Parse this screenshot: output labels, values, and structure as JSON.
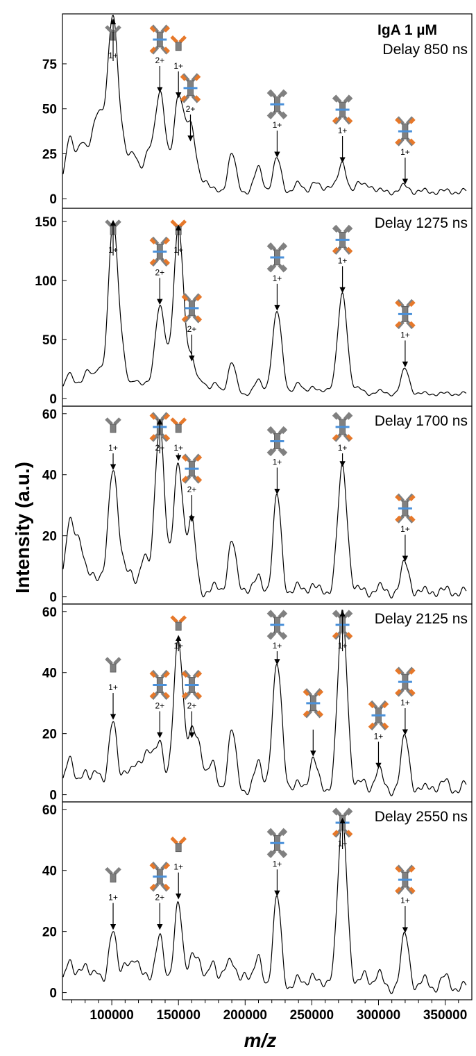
{
  "figure": {
    "sample_label": "IgA 1 µM",
    "ylabel": "Intensity (a.u.)",
    "xlabel": "m/z",
    "xlim": [
      63000,
      370000
    ],
    "xticks": [
      100000,
      150000,
      200000,
      250000,
      300000,
      350000
    ],
    "xtick_labels": [
      "100000",
      "150000",
      "200000",
      "250000",
      "300000",
      "350000"
    ],
    "colors": {
      "heavy_chain": "#808080",
      "light_chain": "#e6782a",
      "j_chain": "#4a90d9",
      "trace": "#000000"
    }
  },
  "chart_data": [
    {
      "type": "line",
      "title": "Delay 850 ns",
      "ylim": [
        -3,
        102
      ],
      "yticks": [
        0,
        25,
        50,
        75
      ],
      "peaks": [
        [
          68000,
          30
        ],
        [
          73000,
          15
        ],
        [
          78000,
          28
        ],
        [
          85000,
          25
        ],
        [
          90000,
          39
        ],
        [
          95000,
          24
        ],
        [
          101000,
          98
        ],
        [
          108000,
          25
        ],
        [
          114000,
          15
        ],
        [
          118000,
          18
        ],
        [
          124000,
          12
        ],
        [
          128000,
          20
        ],
        [
          136000,
          58
        ],
        [
          141000,
          12
        ],
        [
          150000,
          55
        ],
        [
          155000,
          15
        ],
        [
          159000,
          31
        ],
        [
          163000,
          14
        ],
        [
          170000,
          10
        ],
        [
          190000,
          25
        ],
        [
          210000,
          17
        ],
        [
          224000,
          22
        ],
        [
          240000,
          8
        ],
        [
          252000,
          9
        ],
        [
          264000,
          8
        ],
        [
          273000,
          19
        ],
        [
          285000,
          8
        ],
        [
          293000,
          8
        ],
        [
          320000,
          7
        ],
        [
          340000,
          4
        ]
      ],
      "baseline": 4,
      "annotations": [
        {
          "x": 101000,
          "icon": "fragment",
          "charge": "1+"
        },
        {
          "x": 136000,
          "icon": "half-j",
          "charge": "2+"
        },
        {
          "x": 150000,
          "icon": "fragment-orange",
          "charge": "1+"
        },
        {
          "x": 159000,
          "icon": "half-j",
          "charge": "2+"
        },
        {
          "x": 224000,
          "icon": "gray-j",
          "charge": "1+"
        },
        {
          "x": 273000,
          "icon": "mixed-j",
          "charge": "1+"
        },
        {
          "x": 320000,
          "icon": "orange-j",
          "charge": "1+"
        }
      ]
    },
    {
      "type": "line",
      "title": "Delay 1275 ns",
      "ylim": [
        -3,
        160
      ],
      "yticks": [
        0,
        50,
        100,
        150
      ],
      "peaks": [
        [
          68000,
          20
        ],
        [
          75000,
          12
        ],
        [
          82000,
          22
        ],
        [
          90000,
          25
        ],
        [
          101000,
          148
        ],
        [
          108000,
          30
        ],
        [
          118000,
          15
        ],
        [
          125000,
          12
        ],
        [
          136000,
          78
        ],
        [
          142000,
          15
        ],
        [
          150000,
          144
        ],
        [
          155000,
          12
        ],
        [
          160000,
          30
        ],
        [
          168000,
          15
        ],
        [
          178000,
          12
        ],
        [
          190000,
          30
        ],
        [
          210000,
          15
        ],
        [
          224000,
          73
        ],
        [
          240000,
          12
        ],
        [
          250000,
          10
        ],
        [
          262000,
          8
        ],
        [
          273000,
          88
        ],
        [
          285000,
          8
        ],
        [
          300000,
          6
        ],
        [
          320000,
          25
        ],
        [
          345000,
          4
        ]
      ],
      "baseline": 4,
      "annotations": [
        {
          "x": 101000,
          "icon": "fragment",
          "charge": "1+"
        },
        {
          "x": 136000,
          "icon": "half-j",
          "charge": "2+"
        },
        {
          "x": 150000,
          "icon": "fragment-orange",
          "charge": "1+"
        },
        {
          "x": 160000,
          "icon": "half-j",
          "charge": "2+"
        },
        {
          "x": 224000,
          "icon": "gray-j",
          "charge": "1+"
        },
        {
          "x": 273000,
          "icon": "mixed-j",
          "charge": "1+"
        },
        {
          "x": 320000,
          "icon": "orange-j",
          "charge": "1+"
        }
      ]
    },
    {
      "type": "line",
      "title": "Delay 1700 ns",
      "ylim": [
        -1,
        62
      ],
      "yticks": [
        0,
        20,
        40,
        60
      ],
      "peaks": [
        [
          68000,
          21
        ],
        [
          73000,
          12
        ],
        [
          77000,
          13
        ],
        [
          85000,
          6
        ],
        [
          91000,
          6
        ],
        [
          101000,
          41
        ],
        [
          108000,
          8
        ],
        [
          114000,
          6
        ],
        [
          124000,
          14
        ],
        [
          136000,
          57
        ],
        [
          150000,
          44
        ],
        [
          160000,
          24
        ],
        [
          178000,
          3
        ],
        [
          190000,
          18
        ],
        [
          200000,
          3
        ],
        [
          210000,
          6
        ],
        [
          224000,
          33
        ],
        [
          240000,
          3
        ],
        [
          250000,
          4
        ],
        [
          273000,
          42
        ],
        [
          285000,
          2
        ],
        [
          300000,
          3
        ],
        [
          320000,
          11
        ],
        [
          340000,
          2
        ],
        [
          352000,
          2
        ]
      ],
      "baseline": 1.5,
      "annotations": [
        {
          "x": 101000,
          "icon": "fragment",
          "charge": "1+"
        },
        {
          "x": 136000,
          "icon": "half-j",
          "charge": "2+"
        },
        {
          "x": 150000,
          "icon": "fragment-orange",
          "charge": "1+"
        },
        {
          "x": 160000,
          "icon": "half-j",
          "charge": "2+"
        },
        {
          "x": 224000,
          "icon": "gray-j",
          "charge": "1+"
        },
        {
          "x": 273000,
          "icon": "mixed-j",
          "charge": "1+"
        },
        {
          "x": 320000,
          "icon": "orange-j",
          "charge": "1+"
        }
      ]
    },
    {
      "type": "line",
      "title": "Delay 2125 ns",
      "ylim": [
        -1,
        62
      ],
      "yticks": [
        0,
        20,
        40,
        60
      ],
      "peaks": [
        [
          68000,
          10
        ],
        [
          72000,
          4
        ],
        [
          79000,
          7
        ],
        [
          89000,
          9
        ],
        [
          101000,
          24
        ],
        [
          110000,
          7
        ],
        [
          118000,
          9
        ],
        [
          124000,
          10
        ],
        [
          129000,
          10
        ],
        [
          136000,
          18
        ],
        [
          150000,
          51
        ],
        [
          160000,
          18
        ],
        [
          166000,
          14
        ],
        [
          175000,
          10
        ],
        [
          190000,
          21
        ],
        [
          210000,
          10
        ],
        [
          224000,
          42
        ],
        [
          240000,
          3
        ],
        [
          251000,
          12
        ],
        [
          273000,
          59
        ],
        [
          288000,
          4
        ],
        [
          300000,
          8
        ],
        [
          320000,
          19
        ],
        [
          340000,
          3
        ],
        [
          350000,
          4
        ],
        [
          365000,
          3
        ]
      ],
      "baseline": 1.5,
      "annotations": [
        {
          "x": 101000,
          "icon": "fragment",
          "charge": "1+"
        },
        {
          "x": 136000,
          "icon": "half-j",
          "charge": "2+"
        },
        {
          "x": 150000,
          "icon": "fragment-orange",
          "charge": "1+"
        },
        {
          "x": 160000,
          "icon": "half-j",
          "charge": "2+"
        },
        {
          "x": 224000,
          "icon": "gray-j",
          "charge": "1+"
        },
        {
          "x": 251000,
          "icon": "half-j",
          "charge": ""
        },
        {
          "x": 273000,
          "icon": "mixed-j",
          "charge": "1+"
        },
        {
          "x": 300000,
          "icon": "half-j",
          "charge": "1+"
        },
        {
          "x": 320000,
          "icon": "orange-j",
          "charge": "1+"
        }
      ]
    },
    {
      "type": "line",
      "title": "Delay 2550 ns",
      "ylim": [
        -1,
        62
      ],
      "yticks": [
        0,
        20,
        40,
        60
      ],
      "peaks": [
        [
          68000,
          9
        ],
        [
          75000,
          6
        ],
        [
          80000,
          7
        ],
        [
          89000,
          8
        ],
        [
          101000,
          20
        ],
        [
          110000,
          9
        ],
        [
          118000,
          10
        ],
        [
          124000,
          6
        ],
        [
          136000,
          20
        ],
        [
          150000,
          30
        ],
        [
          160000,
          10
        ],
        [
          166000,
          9
        ],
        [
          175000,
          9
        ],
        [
          185000,
          8
        ],
        [
          190000,
          8
        ],
        [
          200000,
          7
        ],
        [
          210000,
          11
        ],
        [
          224000,
          31
        ],
        [
          240000,
          4
        ],
        [
          250000,
          6
        ],
        [
          263000,
          4
        ],
        [
          273000,
          56
        ],
        [
          290000,
          6
        ],
        [
          300000,
          6
        ],
        [
          320000,
          19
        ],
        [
          335000,
          4
        ],
        [
          350000,
          5
        ],
        [
          365000,
          2
        ]
      ],
      "baseline": 1.5,
      "annotations": [
        {
          "x": 101000,
          "icon": "fragment",
          "charge": "1+"
        },
        {
          "x": 136000,
          "icon": "half-j",
          "charge": "2+"
        },
        {
          "x": 150000,
          "icon": "fragment-orange",
          "charge": "1+"
        },
        {
          "x": 224000,
          "icon": "gray-j",
          "charge": "1+"
        },
        {
          "x": 273000,
          "icon": "mixed-j",
          "charge": "1+"
        },
        {
          "x": 320000,
          "icon": "orange-j",
          "charge": "1+"
        }
      ]
    }
  ]
}
